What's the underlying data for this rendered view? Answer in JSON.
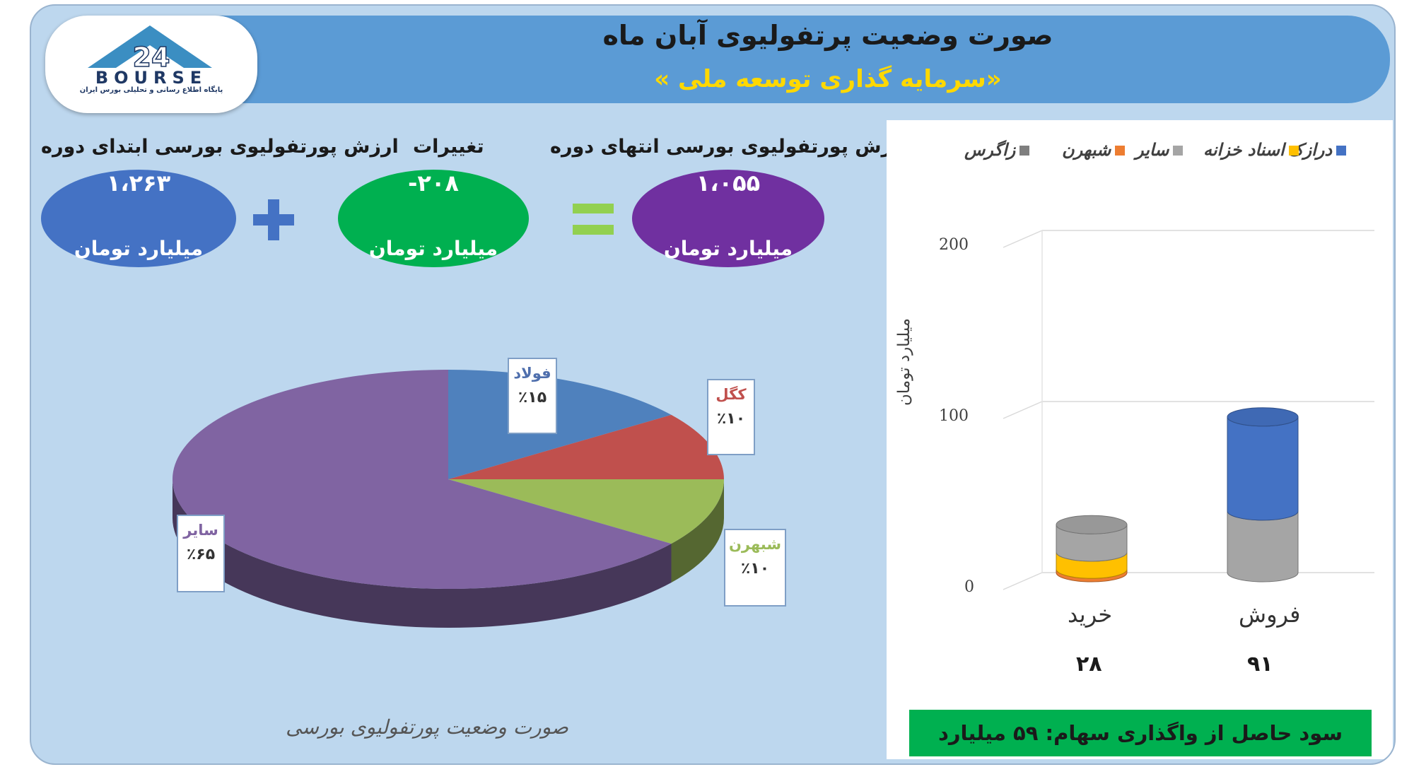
{
  "header": {
    "title": "صورت وضعیت پرتفولیوی آبان ماه",
    "subtitle": "«سرمایه گذاری توسعه ملی »"
  },
  "logo": {
    "wordmark": "BOURSE",
    "number": "24",
    "caption": "پایگاه اطلاع رسانی و تحلیلی بورس ایران"
  },
  "kpis": {
    "start": {
      "label": "ارزش پورتفولیوی بورسی ابتدای دوره",
      "value": "۱،۲۶۳",
      "unit": "میلیارد تومان",
      "color": "#4472c4"
    },
    "change": {
      "label": "تغییرات",
      "value": "-۲۰۸",
      "unit": "میلیارد تومان",
      "color": "#00b050"
    },
    "end": {
      "label": "ارزش پورتفولیوی بورسی انتهای دوره",
      "value": "۱،۰۵۵",
      "unit": "میلیارد تومان",
      "color": "#7030a0"
    },
    "plus_icon": "plus-icon",
    "equals_icon": "equals-icon"
  },
  "chart_data": [
    {
      "type": "pie",
      "title": "صورت وضعیت پورتفولیوی بورسی",
      "labels": [
        "فولاد",
        "کگل",
        "شبهرن",
        "سایر"
      ],
      "values": [
        15,
        10,
        10,
        65
      ],
      "display": [
        "٪۱۵",
        "٪۱۰",
        "٪۱۰",
        "٪۶۵"
      ],
      "colors": [
        "#4f81bd",
        "#c0504d",
        "#9bbb59",
        "#8064a2"
      ],
      "label_colors": [
        "#4f6fad",
        "#c0504d",
        "#9bbb59",
        "#8064a2"
      ]
    },
    {
      "type": "bar",
      "categories": [
        "خرید",
        "فروش"
      ],
      "category_values": [
        "۲۸",
        "۹۱"
      ],
      "ylabel": "میلیارد تومان",
      "ylim": [
        0,
        200
      ],
      "yticks": [
        "0",
        "100",
        "200"
      ],
      "legend_position": "top",
      "series": [
        {
          "name": "درازک",
          "color": "#4472c4",
          "values": [
            0,
            55
          ]
        },
        {
          "name": "اسناد خزانه",
          "color": "#ffc000",
          "values": [
            10,
            0
          ]
        },
        {
          "name": "سایر",
          "color": "#a5a5a5",
          "values": [
            16,
            36
          ]
        },
        {
          "name": "شبهرن",
          "color": "#ed7d31",
          "values": [
            2,
            0
          ]
        },
        {
          "name": "زاگرس",
          "color": "#7f7f7f",
          "values": [
            0,
            0
          ]
        }
      ]
    }
  ],
  "profit": {
    "text": "سود حاصل از واگذاری سهام: ۵۹ میلیارد تومان"
  }
}
